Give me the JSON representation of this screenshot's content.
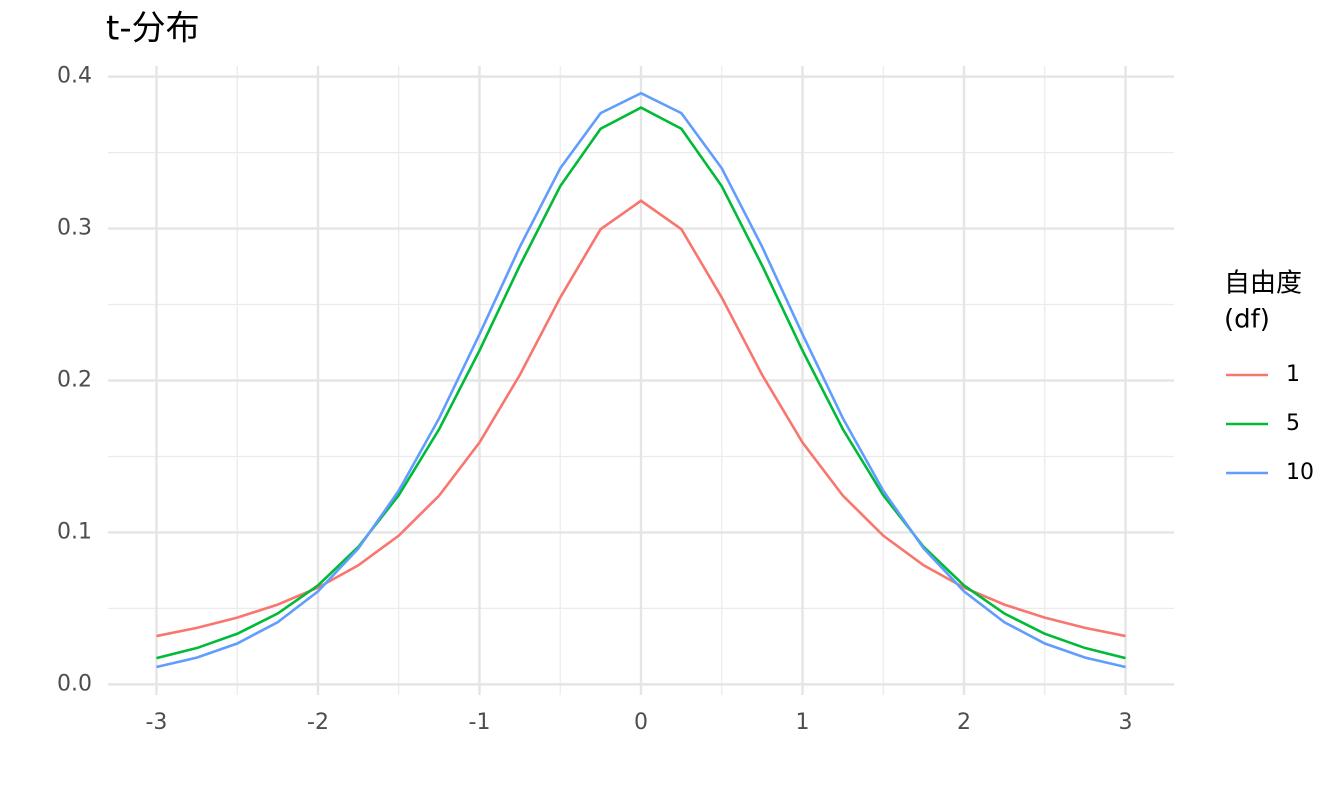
{
  "chart_data": {
    "type": "line",
    "title": "t-分布",
    "legend_title": [
      "自由度",
      "(df)"
    ],
    "x": [
      -3,
      -2.75,
      -2.5,
      -2.25,
      -2,
      -1.75,
      -1.5,
      -1.25,
      -1,
      -0.75,
      -0.5,
      -0.25,
      0,
      0.25,
      0.5,
      0.75,
      1,
      1.25,
      1.5,
      1.75,
      2,
      2.25,
      2.5,
      2.75,
      3
    ],
    "series": [
      {
        "name": "1",
        "color": "#F8766D",
        "values": [
          0.0318,
          0.0372,
          0.0439,
          0.0525,
          0.0637,
          0.0784,
          0.0979,
          0.1242,
          0.1592,
          0.2037,
          0.2546,
          0.2996,
          0.3183,
          0.2996,
          0.2546,
          0.2037,
          0.1592,
          0.1242,
          0.0979,
          0.0784,
          0.0637,
          0.0525,
          0.0439,
          0.0372,
          0.0318
        ]
      },
      {
        "name": "5",
        "color": "#00BA38",
        "values": [
          0.0173,
          0.0239,
          0.0333,
          0.0466,
          0.0651,
          0.0905,
          0.1245,
          0.1679,
          0.2197,
          0.2757,
          0.3279,
          0.3657,
          0.3796,
          0.3657,
          0.3279,
          0.2757,
          0.2197,
          0.1679,
          0.1245,
          0.0905,
          0.0651,
          0.0466,
          0.0333,
          0.0239,
          0.0173
        ]
      },
      {
        "name": "10",
        "color": "#619CFF",
        "values": [
          0.0114,
          0.0176,
          0.0269,
          0.0409,
          0.0612,
          0.0895,
          0.1274,
          0.1751,
          0.2304,
          0.288,
          0.3397,
          0.376,
          0.3891,
          0.376,
          0.3397,
          0.288,
          0.2304,
          0.1751,
          0.1274,
          0.0895,
          0.0612,
          0.0409,
          0.0269,
          0.0176,
          0.0114
        ]
      }
    ],
    "xlim": [
      -3.3,
      3.3
    ],
    "ylim": [
      -0.007,
      0.407
    ],
    "xticks": [
      -3,
      -2,
      -1,
      0,
      1,
      2,
      3
    ],
    "yticks": [
      {
        "value": 0,
        "label": "0.0"
      },
      0.1,
      0.2,
      0.3,
      0.4
    ],
    "xminorticks": [
      -2.5,
      -1.5,
      -0.5,
      0.5,
      1.5,
      2.5
    ],
    "yminorticks": [
      0.05,
      0.15,
      0.25,
      0.35
    ],
    "grid": true
  }
}
